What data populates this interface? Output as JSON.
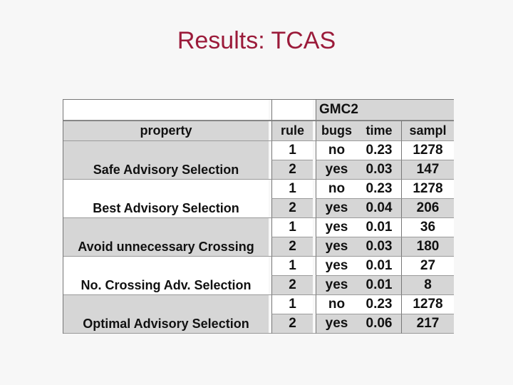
{
  "slide": {
    "title": "Results: TCAS"
  },
  "table": {
    "group_header": "GMC2",
    "columns": {
      "property": "property",
      "rule": "rule",
      "bugs": "bugs",
      "time": "time",
      "sampl": "sampl"
    },
    "groups": [
      {
        "property": "Safe Advisory Selection",
        "shade": true,
        "rows": [
          {
            "rule": "1",
            "bugs": "no",
            "time": "0.23",
            "sampl": "1278"
          },
          {
            "rule": "2",
            "bugs": "yes",
            "time": "0.03",
            "sampl": "147"
          }
        ]
      },
      {
        "property": "Best Advisory Selection",
        "shade": false,
        "rows": [
          {
            "rule": "1",
            "bugs": "no",
            "time": "0.23",
            "sampl": "1278"
          },
          {
            "rule": "2",
            "bugs": "yes",
            "time": "0.04",
            "sampl": "206"
          }
        ]
      },
      {
        "property": "Avoid unnecessary Crossing",
        "shade": true,
        "rows": [
          {
            "rule": "1",
            "bugs": "yes",
            "time": "0.01",
            "sampl": "36"
          },
          {
            "rule": "2",
            "bugs": "yes",
            "time": "0.03",
            "sampl": "180"
          }
        ]
      },
      {
        "property": "No. Crossing Adv. Selection",
        "shade": false,
        "rows": [
          {
            "rule": "1",
            "bugs": "yes",
            "time": "0.01",
            "sampl": "27"
          },
          {
            "rule": "2",
            "bugs": "yes",
            "time": "0.01",
            "sampl": "8"
          }
        ]
      },
      {
        "property": "Optimal Advisory Selection",
        "shade": true,
        "rows": [
          {
            "rule": "1",
            "bugs": "no",
            "time": "0.23",
            "sampl": "1278"
          },
          {
            "rule": "2",
            "bugs": "yes",
            "time": "0.06",
            "sampl": "217"
          }
        ]
      }
    ]
  }
}
